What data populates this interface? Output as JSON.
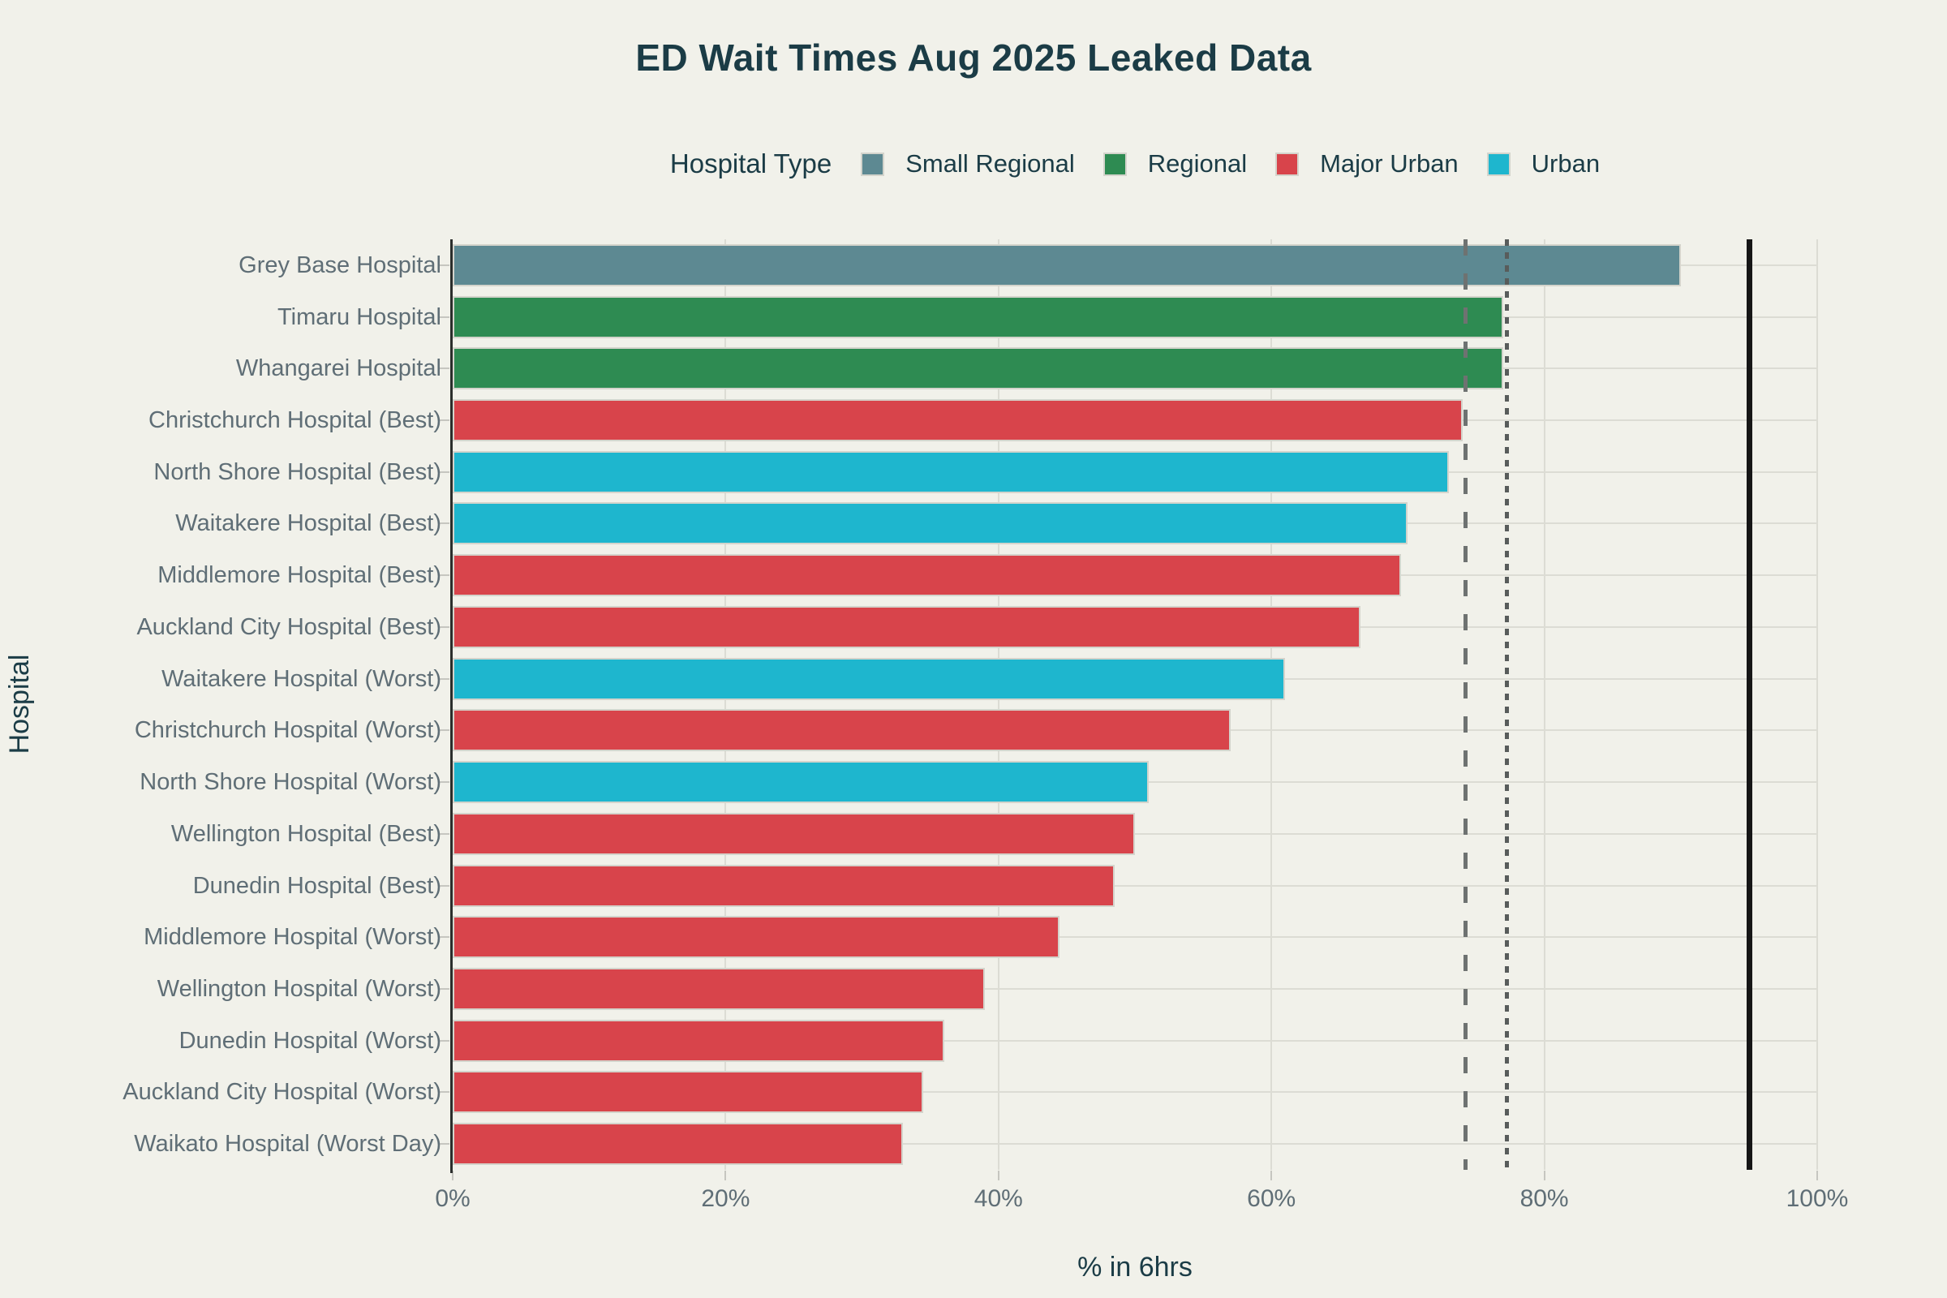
{
  "title": "ED Wait Times Aug 2025 Leaked Data",
  "chart_data": {
    "type": "bar",
    "orientation": "horizontal",
    "title": "ED Wait Times Aug 2025 Leaked Data",
    "xlabel": "% in 6hrs",
    "ylabel": "Hospital",
    "xlim": [
      0,
      100
    ],
    "grid": true,
    "x_ticks": [
      {
        "value": 0,
        "label": "0%"
      },
      {
        "value": 20,
        "label": "20%"
      },
      {
        "value": 40,
        "label": "40%"
      },
      {
        "value": 60,
        "label": "60%"
      },
      {
        "value": 80,
        "label": "80%"
      },
      {
        "value": 100,
        "label": "100%"
      }
    ],
    "legend": {
      "title": "Hospital Type",
      "position": "top",
      "items": [
        {
          "label": "Small Regional",
          "color": "#5d8992"
        },
        {
          "label": "Regional",
          "color": "#2e8b52"
        },
        {
          "label": "Major Urban",
          "color": "#d8444b"
        },
        {
          "label": "Urban",
          "color": "#1eb6ce"
        }
      ]
    },
    "hospitals": [
      {
        "name": "Grey Base Hospital",
        "type": "Small Regional",
        "value": 90
      },
      {
        "name": "Timaru Hospital",
        "type": "Regional",
        "value": 77
      },
      {
        "name": "Whangarei Hospital",
        "type": "Regional",
        "value": 77
      },
      {
        "name": "Christchurch Hospital (Best)",
        "type": "Major Urban",
        "value": 74
      },
      {
        "name": "North Shore Hospital (Best)",
        "type": "Urban",
        "value": 73
      },
      {
        "name": "Waitakere Hospital (Best)",
        "type": "Urban",
        "value": 70
      },
      {
        "name": "Middlemore Hospital (Best)",
        "type": "Major Urban",
        "value": 69.5
      },
      {
        "name": "Auckland City Hospital (Best)",
        "type": "Major Urban",
        "value": 66.5
      },
      {
        "name": "Waitakere Hospital (Worst)",
        "type": "Urban",
        "value": 61
      },
      {
        "name": "Christchurch Hospital (Worst)",
        "type": "Major Urban",
        "value": 57
      },
      {
        "name": "North Shore Hospital (Worst)",
        "type": "Urban",
        "value": 51
      },
      {
        "name": "Wellington Hospital (Best)",
        "type": "Major Urban",
        "value": 50
      },
      {
        "name": "Dunedin Hospital (Best)",
        "type": "Major Urban",
        "value": 48.5
      },
      {
        "name": "Middlemore Hospital (Worst)",
        "type": "Major Urban",
        "value": 44.5
      },
      {
        "name": "Wellington Hospital (Worst)",
        "type": "Major Urban",
        "value": 39
      },
      {
        "name": "Dunedin Hospital (Worst)",
        "type": "Major Urban",
        "value": 36
      },
      {
        "name": "Auckland City Hospital (Worst)",
        "type": "Major Urban",
        "value": 34.5
      },
      {
        "name": "Waikato Hospital (Worst Day)",
        "type": "Major Urban",
        "value": 33
      }
    ],
    "reference_lines": [
      {
        "name": "dashed-reference-line",
        "style": "dashed",
        "value": 74.2,
        "color": "#6e7271"
      },
      {
        "name": "dotted-reference-line",
        "style": "dotted",
        "value": 77.2,
        "color": "#585c5b"
      },
      {
        "name": "target-line",
        "style": "solid",
        "value": 95,
        "color": "#161616"
      }
    ]
  },
  "colors": {
    "background": "#f1f1ea",
    "title_text": "#1b3c46",
    "tick_text": "#5f6e76",
    "gridline": "#dcdcd4",
    "axis_line": "#2b2e2c",
    "bar_border": "#d4d4cc"
  }
}
